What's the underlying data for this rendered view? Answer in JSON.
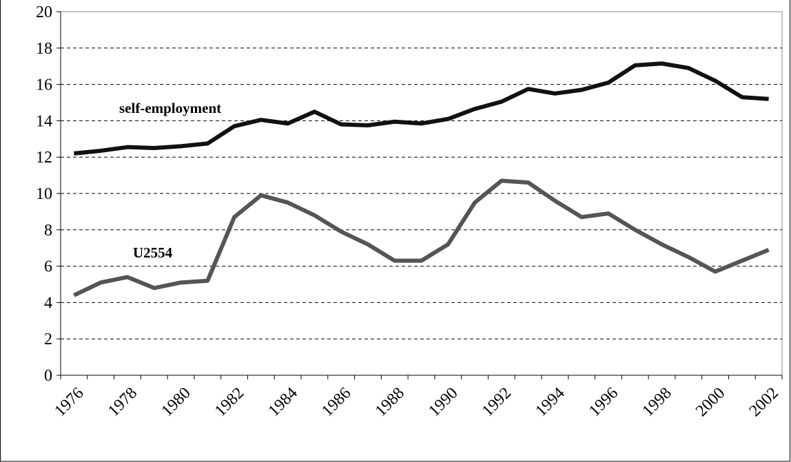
{
  "chart_data": {
    "type": "line",
    "categories": [
      "1976",
      null,
      "1978",
      null,
      "1980",
      null,
      "1982",
      null,
      "1984",
      null,
      "1986",
      null,
      "1988",
      null,
      "1990",
      null,
      "1992",
      null,
      "1994",
      null,
      "1996",
      null,
      "1998",
      null,
      "2000",
      null,
      "2002"
    ],
    "series": [
      {
        "name": "self-employment",
        "color": "#111111",
        "values": [
          12.2,
          12.35,
          12.55,
          12.5,
          12.6,
          12.75,
          13.7,
          14.05,
          13.85,
          14.5,
          13.8,
          13.75,
          13.95,
          13.85,
          14.1,
          14.65,
          15.05,
          15.75,
          15.5,
          15.7,
          16.1,
          17.05,
          17.15,
          16.9,
          16.2,
          15.3,
          15.2
        ]
      },
      {
        "name": "U2554",
        "color": "#555555",
        "values": [
          4.4,
          5.1,
          5.4,
          4.8,
          5.1,
          5.2,
          8.7,
          9.9,
          9.5,
          8.8,
          7.9,
          7.2,
          6.3,
          6.3,
          7.2,
          9.5,
          10.7,
          10.6,
          9.6,
          8.7,
          8.9,
          8.0,
          7.2,
          6.5,
          5.7,
          6.3,
          6.9
        ]
      }
    ],
    "ylim": [
      0,
      20
    ],
    "yticks": [
      0,
      2,
      4,
      6,
      8,
      10,
      12,
      14,
      16,
      18,
      20
    ],
    "grid": true
  }
}
